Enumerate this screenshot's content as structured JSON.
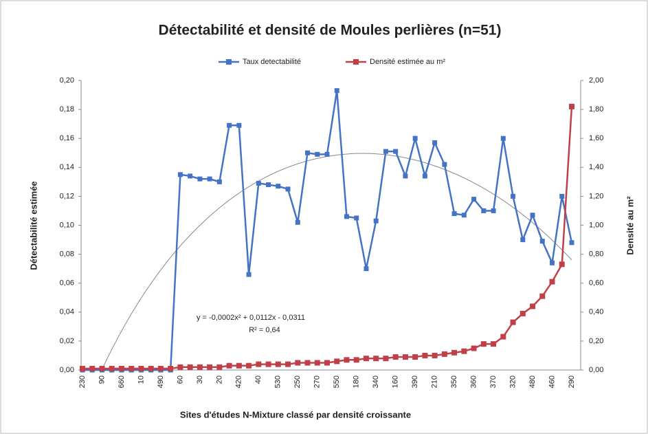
{
  "chart_data": {
    "type": "line",
    "title": "Détectabilité et densité de Moules perlières (n=51)",
    "x_label": "Sites d'études N-Mixture classé par densité croissante",
    "y_label": "Détectabilité estimée",
    "y2_label": "Densité au m²",
    "annotations": [
      "y = -0,0002x² + 0,0112x - 0,0311",
      "R² = 0,64"
    ],
    "categories": [
      "230",
      null,
      "90",
      null,
      "660",
      null,
      "10",
      null,
      "490",
      null,
      "60",
      null,
      "30",
      null,
      "20",
      null,
      "420",
      null,
      "40",
      null,
      "530",
      null,
      "250",
      null,
      "270",
      null,
      "550",
      null,
      "180",
      null,
      "340",
      null,
      "160",
      null,
      "390",
      null,
      "210",
      null,
      "350",
      null,
      "360",
      null,
      "370",
      null,
      "320",
      null,
      "480",
      null,
      "460",
      null,
      "290"
    ],
    "series": [
      {
        "name": "Taux detectabilité",
        "color": "#4472c4",
        "values": [
          0,
          0,
          0,
          0,
          0,
          0,
          0,
          0,
          0,
          0,
          0.135,
          0.134,
          0.132,
          0.132,
          0.13,
          0.169,
          0.169,
          0.066,
          0.129,
          0.128,
          0.127,
          0.125,
          0.102,
          0.15,
          0.149,
          0.149,
          0.193,
          0.106,
          0.105,
          0.07,
          0.103,
          0.151,
          0.151,
          0.134,
          0.16,
          0.134,
          0.157,
          0.142,
          0.108,
          0.107,
          0.118,
          0.11,
          0.11,
          0.16,
          0.12,
          0.09,
          0.107,
          0.089,
          0.074,
          0.12,
          0.088
        ]
      },
      {
        "name": "Densité estimée au m²",
        "color": "#c0404a",
        "axis": "y2",
        "values": [
          0.01,
          0.01,
          0.01,
          0.01,
          0.01,
          0.01,
          0.01,
          0.01,
          0.01,
          0.01,
          0.02,
          0.02,
          0.02,
          0.02,
          0.02,
          0.03,
          0.03,
          0.03,
          0.04,
          0.04,
          0.04,
          0.04,
          0.05,
          0.05,
          0.05,
          0.05,
          0.06,
          0.07,
          0.07,
          0.08,
          0.08,
          0.08,
          0.09,
          0.09,
          0.09,
          0.1,
          0.1,
          0.11,
          0.12,
          0.13,
          0.15,
          0.18,
          0.18,
          0.23,
          0.33,
          0.39,
          0.44,
          0.51,
          0.61,
          0.73,
          1.82
        ]
      }
    ],
    "ylim": [
      0,
      0.2
    ],
    "yticks": [
      {
        "value": 0,
        "label": "0,00"
      },
      {
        "value": 0.02,
        "label": "0,02"
      },
      {
        "value": 0.04,
        "label": "0,04"
      },
      {
        "value": 0.06,
        "label": "0,06"
      },
      {
        "value": 0.08,
        "label": "0,08"
      },
      {
        "value": 0.1,
        "label": "0,10"
      },
      {
        "value": 0.12,
        "label": "0,12"
      },
      {
        "value": 0.14,
        "label": "0,14"
      },
      {
        "value": 0.16,
        "label": "0,16"
      },
      {
        "value": 0.18,
        "label": "0,18"
      },
      {
        "value": 0.2,
        "label": "0,20"
      }
    ],
    "y2lim": [
      0,
      2
    ],
    "y2ticks": [
      {
        "value": 0,
        "label": "0,00"
      },
      {
        "value": 0.2,
        "label": "0,20"
      },
      {
        "value": 0.4,
        "label": "0,40"
      },
      {
        "value": 0.6,
        "label": "0,60"
      },
      {
        "value": 0.8,
        "label": "0,80"
      },
      {
        "value": 1,
        "label": "1,00"
      },
      {
        "value": 1.2,
        "label": "1,20"
      },
      {
        "value": 1.4,
        "label": "1,40"
      },
      {
        "value": 1.6,
        "label": "1,60"
      },
      {
        "value": 1.8,
        "label": "1,80"
      },
      {
        "value": 2,
        "label": "2,00"
      }
    ],
    "legend": "top"
  }
}
